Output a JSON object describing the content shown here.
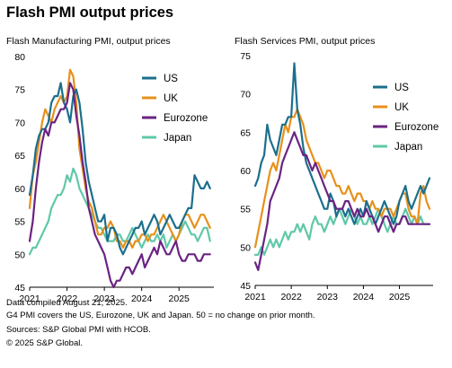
{
  "title": "Flash PMI output prices",
  "footnotes": [
    "Data compiled August 21, 2025.",
    "G4 PMI covers the US, Eurozone, UK and Japan. 50 = no change on prior month.",
    "Sources: S&P Global PMI with HCOB.",
    "© 2025 S&P Global."
  ],
  "colors": {
    "US": "#1b6f8c",
    "UK": "#e8901a",
    "Eurozone": "#6a2382",
    "Japan": "#5fc8a8"
  },
  "chart_data": [
    {
      "type": "line",
      "title": "Flash Manufacturing PMI, output prices",
      "x_start": "2021-01",
      "x_ticks": [
        "2021",
        "2022",
        "2023",
        "2024",
        "2025"
      ],
      "ylim": [
        45,
        80
      ],
      "y_ticks": [
        45,
        50,
        55,
        60,
        65,
        70,
        75,
        80
      ],
      "legend": [
        "US",
        "UK",
        "Eurozone",
        "Japan"
      ],
      "series": [
        {
          "name": "US",
          "values": [
            59,
            62,
            66,
            68,
            69,
            69,
            70,
            73,
            74,
            74,
            76,
            73,
            72,
            70,
            74,
            75,
            73,
            69,
            64,
            61,
            59,
            57,
            55,
            55,
            56,
            52,
            54,
            54,
            53,
            51,
            50,
            51,
            52,
            53,
            54,
            54,
            55,
            53,
            54,
            55,
            56,
            55,
            53,
            54,
            55,
            56,
            55,
            54,
            54,
            55,
            56,
            57,
            57,
            62,
            61,
            60,
            60,
            61,
            60
          ]
        },
        {
          "name": "UK",
          "values": [
            57,
            62,
            64,
            67,
            70,
            72,
            71,
            70,
            72,
            73,
            74,
            73,
            74,
            78,
            77,
            73,
            66,
            63,
            60,
            58,
            57,
            55,
            53,
            53,
            54,
            54,
            55,
            54,
            52,
            52,
            51,
            52,
            52,
            51,
            52,
            52,
            53,
            53,
            52,
            53,
            53,
            54,
            55,
            56,
            55,
            54,
            53,
            52,
            53,
            55,
            56,
            56,
            55,
            54,
            55,
            56,
            56,
            55,
            54
          ]
        },
        {
          "name": "Eurozone",
          "values": [
            52,
            55,
            60,
            64,
            67,
            69,
            68,
            70,
            70,
            71,
            72,
            72,
            73,
            76,
            75,
            71,
            68,
            64,
            61,
            57,
            55,
            53,
            52,
            51,
            50,
            48,
            46,
            45,
            46,
            46,
            47,
            48,
            48,
            47,
            48,
            49,
            50,
            48,
            49,
            50,
            51,
            50,
            52,
            51,
            50,
            50,
            51,
            52,
            50,
            49,
            49,
            50,
            50,
            50,
            49,
            49,
            50,
            50,
            50
          ]
        },
        {
          "name": "Japan",
          "values": [
            50,
            51,
            51,
            52,
            53,
            54,
            55,
            57,
            58,
            59,
            59,
            60,
            62,
            61,
            63,
            62,
            60,
            59,
            58,
            57,
            56,
            55,
            54,
            54,
            53,
            52,
            52,
            52,
            53,
            53,
            52,
            52,
            53,
            54,
            53,
            52,
            51,
            52,
            53,
            52,
            52,
            53,
            52,
            53,
            51,
            52,
            53,
            52,
            53,
            54,
            55,
            54,
            53,
            53,
            52,
            53,
            54,
            54,
            52
          ]
        }
      ]
    },
    {
      "type": "line",
      "title": "Flash Services PMI, output prices",
      "x_start": "2021-01",
      "x_ticks": [
        "2021",
        "2022",
        "2023",
        "2024",
        "2025"
      ],
      "ylim": [
        45,
        75
      ],
      "y_ticks": [
        45,
        50,
        55,
        60,
        65,
        70,
        75
      ],
      "legend": [
        "US",
        "UK",
        "Eurozone",
        "Japan"
      ],
      "series": [
        {
          "name": "US",
          "values": [
            58,
            59,
            61,
            62,
            66,
            64,
            63,
            62,
            64,
            66,
            66,
            67,
            67,
            74,
            68,
            66,
            63,
            61,
            60,
            59,
            58,
            57,
            56,
            55,
            55,
            57,
            56,
            54,
            55,
            55,
            54,
            55,
            54,
            53,
            54,
            55,
            54,
            56,
            55,
            54,
            53,
            54,
            55,
            56,
            55,
            54,
            53,
            54,
            56,
            57,
            58,
            56,
            55,
            56,
            57,
            58,
            57,
            58,
            59
          ]
        },
        {
          "name": "UK",
          "values": [
            50,
            52,
            54,
            56,
            58,
            60,
            61,
            60,
            62,
            64,
            66,
            65,
            67,
            67,
            68,
            67,
            66,
            64,
            63,
            62,
            61,
            61,
            60,
            59,
            60,
            60,
            59,
            58,
            58,
            57,
            57,
            58,
            57,
            56,
            57,
            57,
            56,
            56,
            55,
            56,
            55,
            55,
            54,
            55,
            55,
            55,
            54,
            55,
            56,
            57,
            57,
            55,
            54,
            54,
            53,
            57,
            58,
            56,
            55
          ]
        },
        {
          "name": "Eurozone",
          "values": [
            48,
            47,
            49,
            51,
            53,
            56,
            57,
            58,
            59,
            61,
            62,
            63,
            64,
            65,
            64,
            63,
            62,
            62,
            61,
            60,
            61,
            60,
            59,
            58,
            57,
            56,
            56,
            55,
            55,
            55,
            56,
            56,
            55,
            54,
            55,
            54,
            54,
            55,
            54,
            54,
            53,
            52,
            53,
            54,
            54,
            53,
            52,
            53,
            53,
            54,
            54,
            53,
            53,
            53,
            53,
            53,
            53,
            53,
            53
          ]
        },
        {
          "name": "Japan",
          "values": [
            49,
            49,
            50,
            49,
            50,
            51,
            50,
            51,
            50,
            51,
            52,
            51,
            52,
            52,
            53,
            52,
            53,
            52,
            51,
            53,
            54,
            53,
            53,
            52,
            53,
            54,
            53,
            54,
            55,
            54,
            53,
            54,
            55,
            54,
            53,
            54,
            53,
            53,
            54,
            53,
            54,
            55,
            54,
            53,
            52,
            53,
            54,
            53,
            53,
            54,
            55,
            54,
            53,
            54,
            53,
            54,
            53,
            53,
            53
          ]
        }
      ]
    }
  ]
}
